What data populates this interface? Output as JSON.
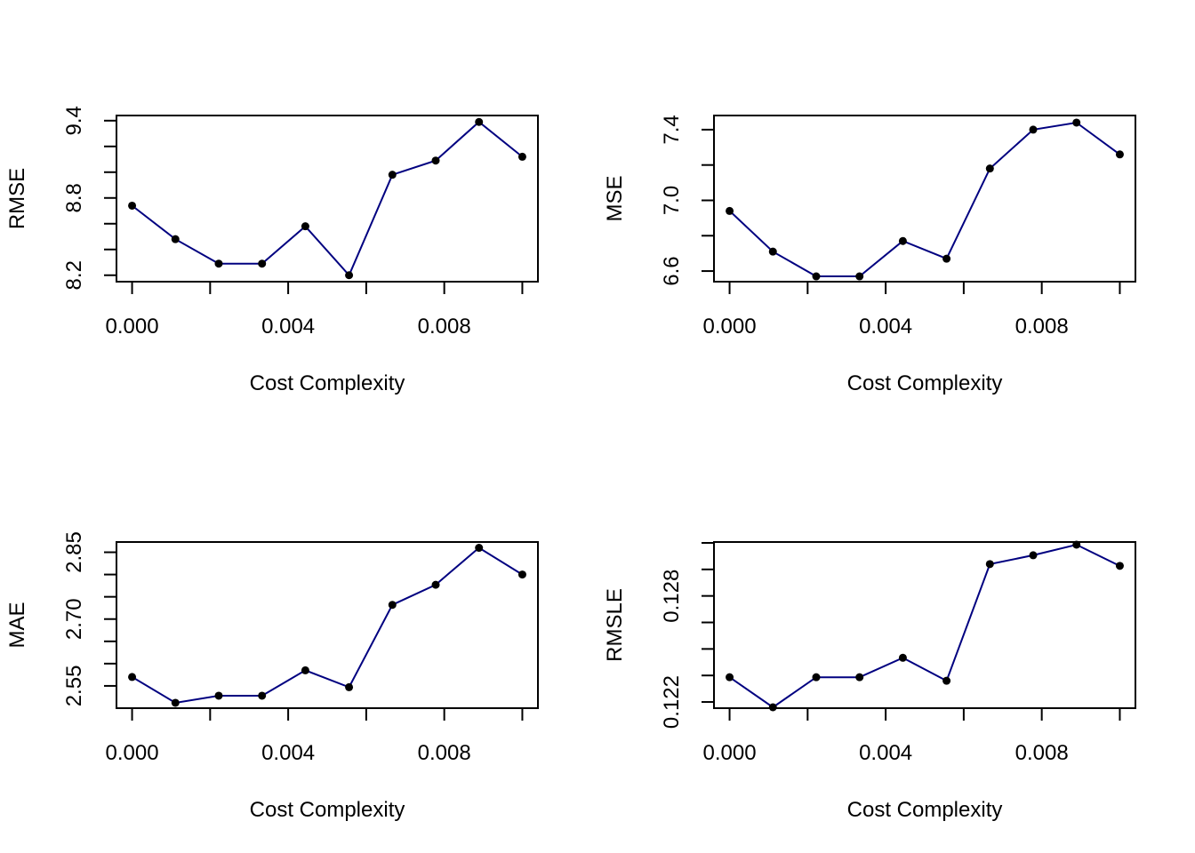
{
  "colors": {
    "line": "#000080",
    "point": "#000000",
    "axis": "#000000"
  },
  "chart_data": [
    {
      "type": "line",
      "xlabel": "Cost Complexity",
      "ylabel": "RMSE",
      "x": [
        0.0,
        0.00111,
        0.00222,
        0.00333,
        0.00444,
        0.00556,
        0.00667,
        0.00778,
        0.00889,
        0.01
      ],
      "values": [
        8.74,
        8.48,
        8.29,
        8.29,
        8.58,
        8.2,
        8.98,
        9.09,
        9.39,
        9.12
      ],
      "xlim": [
        -0.0004,
        0.0104
      ],
      "ylim": [
        8.15,
        9.44
      ],
      "xticks": [
        0.0,
        0.002,
        0.004,
        0.006,
        0.008,
        0.01
      ],
      "xtick_labels": [
        "0.000",
        "",
        "0.004",
        "",
        "0.008",
        ""
      ],
      "yticks": [
        8.2,
        8.4,
        8.6,
        8.8,
        9.0,
        9.2,
        9.4
      ],
      "ytick_labels": [
        "8.2",
        "",
        "",
        "8.8",
        "",
        "",
        "9.4"
      ],
      "grid": false
    },
    {
      "type": "line",
      "xlabel": "Cost Complexity",
      "ylabel": "MSE",
      "x": [
        0.0,
        0.00111,
        0.00222,
        0.00333,
        0.00444,
        0.00556,
        0.00667,
        0.00778,
        0.00889,
        0.01
      ],
      "values": [
        6.94,
        6.71,
        6.57,
        6.57,
        6.77,
        6.67,
        7.18,
        7.4,
        7.44,
        7.26
      ],
      "xlim": [
        -0.0004,
        0.0104
      ],
      "ylim": [
        6.54,
        7.48
      ],
      "xticks": [
        0.0,
        0.002,
        0.004,
        0.006,
        0.008,
        0.01
      ],
      "xtick_labels": [
        "0.000",
        "",
        "0.004",
        "",
        "0.008",
        ""
      ],
      "yticks": [
        6.6,
        6.8,
        7.0,
        7.2,
        7.4
      ],
      "ytick_labels": [
        "6.6",
        "",
        "7.0",
        "",
        "7.4"
      ],
      "grid": false
    },
    {
      "type": "line",
      "xlabel": "Cost Complexity",
      "ylabel": "MAE",
      "x": [
        0.0,
        0.00111,
        0.00222,
        0.00333,
        0.00444,
        0.00556,
        0.00667,
        0.00778,
        0.00889,
        0.01
      ],
      "values": [
        2.57,
        2.512,
        2.528,
        2.528,
        2.585,
        2.547,
        2.732,
        2.777,
        2.86,
        2.8
      ],
      "xlim": [
        -0.0004,
        0.0104
      ],
      "ylim": [
        2.5,
        2.873
      ],
      "xticks": [
        0.0,
        0.002,
        0.004,
        0.006,
        0.008,
        0.01
      ],
      "xtick_labels": [
        "0.000",
        "",
        "0.004",
        "",
        "0.008",
        ""
      ],
      "yticks": [
        2.55,
        2.6,
        2.65,
        2.7,
        2.75,
        2.8,
        2.85
      ],
      "ytick_labels": [
        "2.55",
        "",
        "",
        "2.70",
        "",
        "",
        "2.85"
      ],
      "grid": false
    },
    {
      "type": "line",
      "xlabel": "Cost Complexity",
      "ylabel": "RMSLE",
      "x": [
        0.0,
        0.00111,
        0.00222,
        0.00333,
        0.00444,
        0.00556,
        0.00667,
        0.00778,
        0.00889,
        0.01
      ],
      "values": [
        0.1234,
        0.1217,
        0.1234,
        0.1234,
        0.1245,
        0.1232,
        0.1298,
        0.1303,
        0.1309,
        0.1297
      ],
      "xlim": [
        -0.0004,
        0.0104
      ],
      "ylim": [
        0.12165,
        0.13105
      ],
      "xticks": [
        0.0,
        0.002,
        0.004,
        0.006,
        0.008,
        0.01
      ],
      "xtick_labels": [
        "0.000",
        "",
        "0.004",
        "",
        "0.008",
        ""
      ],
      "yticks": [
        0.122,
        0.1235,
        0.125,
        0.1265,
        0.128,
        0.1295,
        0.131
      ],
      "ytick_labels": [
        "0.122",
        "",
        "",
        "",
        "0.128",
        "",
        ""
      ],
      "grid": false
    }
  ]
}
